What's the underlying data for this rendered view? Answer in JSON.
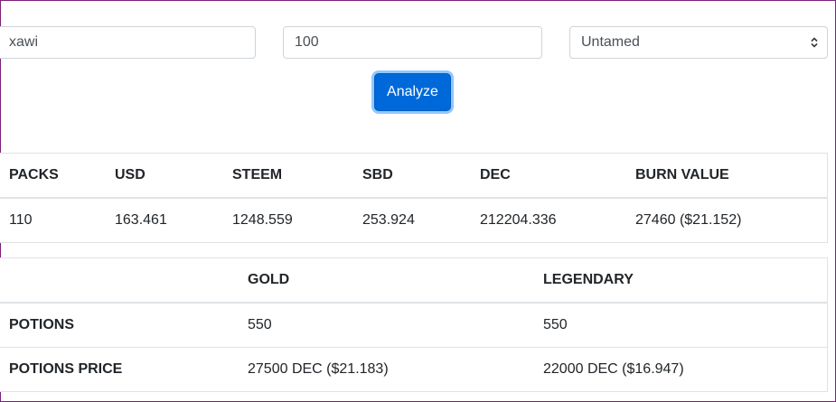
{
  "form": {
    "username": "xawi",
    "pack_count": "100",
    "edition": "Untamed",
    "analyze_label": "Analyze"
  },
  "summary_table": {
    "headers": [
      "PACKS",
      "USD",
      "STEEM",
      "SBD",
      "DEC",
      "BURN VALUE"
    ],
    "row": [
      "110",
      "163.461",
      "1248.559",
      "253.924",
      "212204.336",
      "27460 ($21.152)"
    ]
  },
  "potions_table": {
    "headers": [
      "",
      "GOLD",
      "LEGENDARY"
    ],
    "rows": [
      [
        "POTIONS",
        "550",
        "550"
      ],
      [
        "POTIONS PRICE",
        "27500 DEC ($21.183)",
        "22000 DEC ($16.947)"
      ]
    ]
  },
  "colors": {
    "accent": "#0069d9",
    "frame": "#7b1f78"
  }
}
